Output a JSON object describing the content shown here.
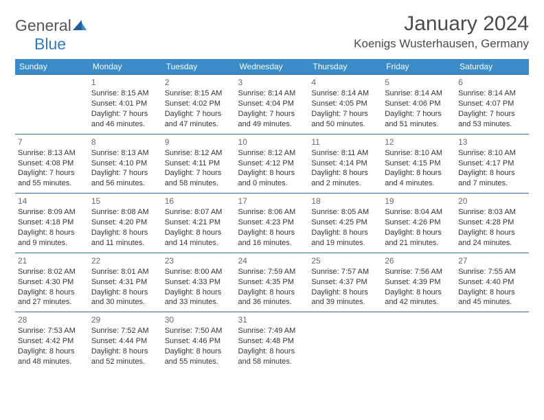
{
  "logo": {
    "word1": "General",
    "word2": "Blue"
  },
  "title": "January 2024",
  "location": "Koenigs Wusterhausen, Germany",
  "colors": {
    "header_bg": "#3b8bc9",
    "border": "#2e6fa8",
    "logo_gray": "#555555",
    "logo_blue": "#2e7cc0",
    "text": "#333333",
    "daynum": "#6a6a6a",
    "page_bg": "#ffffff"
  },
  "weekdays": [
    "Sunday",
    "Monday",
    "Tuesday",
    "Wednesday",
    "Thursday",
    "Friday",
    "Saturday"
  ],
  "weeks": [
    [
      null,
      {
        "day": "1",
        "sunrise": "Sunrise: 8:15 AM",
        "sunset": "Sunset: 4:01 PM",
        "dl1": "Daylight: 7 hours",
        "dl2": "and 46 minutes."
      },
      {
        "day": "2",
        "sunrise": "Sunrise: 8:15 AM",
        "sunset": "Sunset: 4:02 PM",
        "dl1": "Daylight: 7 hours",
        "dl2": "and 47 minutes."
      },
      {
        "day": "3",
        "sunrise": "Sunrise: 8:14 AM",
        "sunset": "Sunset: 4:04 PM",
        "dl1": "Daylight: 7 hours",
        "dl2": "and 49 minutes."
      },
      {
        "day": "4",
        "sunrise": "Sunrise: 8:14 AM",
        "sunset": "Sunset: 4:05 PM",
        "dl1": "Daylight: 7 hours",
        "dl2": "and 50 minutes."
      },
      {
        "day": "5",
        "sunrise": "Sunrise: 8:14 AM",
        "sunset": "Sunset: 4:06 PM",
        "dl1": "Daylight: 7 hours",
        "dl2": "and 51 minutes."
      },
      {
        "day": "6",
        "sunrise": "Sunrise: 8:14 AM",
        "sunset": "Sunset: 4:07 PM",
        "dl1": "Daylight: 7 hours",
        "dl2": "and 53 minutes."
      }
    ],
    [
      {
        "day": "7",
        "sunrise": "Sunrise: 8:13 AM",
        "sunset": "Sunset: 4:08 PM",
        "dl1": "Daylight: 7 hours",
        "dl2": "and 55 minutes."
      },
      {
        "day": "8",
        "sunrise": "Sunrise: 8:13 AM",
        "sunset": "Sunset: 4:10 PM",
        "dl1": "Daylight: 7 hours",
        "dl2": "and 56 minutes."
      },
      {
        "day": "9",
        "sunrise": "Sunrise: 8:12 AM",
        "sunset": "Sunset: 4:11 PM",
        "dl1": "Daylight: 7 hours",
        "dl2": "and 58 minutes."
      },
      {
        "day": "10",
        "sunrise": "Sunrise: 8:12 AM",
        "sunset": "Sunset: 4:12 PM",
        "dl1": "Daylight: 8 hours",
        "dl2": "and 0 minutes."
      },
      {
        "day": "11",
        "sunrise": "Sunrise: 8:11 AM",
        "sunset": "Sunset: 4:14 PM",
        "dl1": "Daylight: 8 hours",
        "dl2": "and 2 minutes."
      },
      {
        "day": "12",
        "sunrise": "Sunrise: 8:10 AM",
        "sunset": "Sunset: 4:15 PM",
        "dl1": "Daylight: 8 hours",
        "dl2": "and 4 minutes."
      },
      {
        "day": "13",
        "sunrise": "Sunrise: 8:10 AM",
        "sunset": "Sunset: 4:17 PM",
        "dl1": "Daylight: 8 hours",
        "dl2": "and 7 minutes."
      }
    ],
    [
      {
        "day": "14",
        "sunrise": "Sunrise: 8:09 AM",
        "sunset": "Sunset: 4:18 PM",
        "dl1": "Daylight: 8 hours",
        "dl2": "and 9 minutes."
      },
      {
        "day": "15",
        "sunrise": "Sunrise: 8:08 AM",
        "sunset": "Sunset: 4:20 PM",
        "dl1": "Daylight: 8 hours",
        "dl2": "and 11 minutes."
      },
      {
        "day": "16",
        "sunrise": "Sunrise: 8:07 AM",
        "sunset": "Sunset: 4:21 PM",
        "dl1": "Daylight: 8 hours",
        "dl2": "and 14 minutes."
      },
      {
        "day": "17",
        "sunrise": "Sunrise: 8:06 AM",
        "sunset": "Sunset: 4:23 PM",
        "dl1": "Daylight: 8 hours",
        "dl2": "and 16 minutes."
      },
      {
        "day": "18",
        "sunrise": "Sunrise: 8:05 AM",
        "sunset": "Sunset: 4:25 PM",
        "dl1": "Daylight: 8 hours",
        "dl2": "and 19 minutes."
      },
      {
        "day": "19",
        "sunrise": "Sunrise: 8:04 AM",
        "sunset": "Sunset: 4:26 PM",
        "dl1": "Daylight: 8 hours",
        "dl2": "and 21 minutes."
      },
      {
        "day": "20",
        "sunrise": "Sunrise: 8:03 AM",
        "sunset": "Sunset: 4:28 PM",
        "dl1": "Daylight: 8 hours",
        "dl2": "and 24 minutes."
      }
    ],
    [
      {
        "day": "21",
        "sunrise": "Sunrise: 8:02 AM",
        "sunset": "Sunset: 4:30 PM",
        "dl1": "Daylight: 8 hours",
        "dl2": "and 27 minutes."
      },
      {
        "day": "22",
        "sunrise": "Sunrise: 8:01 AM",
        "sunset": "Sunset: 4:31 PM",
        "dl1": "Daylight: 8 hours",
        "dl2": "and 30 minutes."
      },
      {
        "day": "23",
        "sunrise": "Sunrise: 8:00 AM",
        "sunset": "Sunset: 4:33 PM",
        "dl1": "Daylight: 8 hours",
        "dl2": "and 33 minutes."
      },
      {
        "day": "24",
        "sunrise": "Sunrise: 7:59 AM",
        "sunset": "Sunset: 4:35 PM",
        "dl1": "Daylight: 8 hours",
        "dl2": "and 36 minutes."
      },
      {
        "day": "25",
        "sunrise": "Sunrise: 7:57 AM",
        "sunset": "Sunset: 4:37 PM",
        "dl1": "Daylight: 8 hours",
        "dl2": "and 39 minutes."
      },
      {
        "day": "26",
        "sunrise": "Sunrise: 7:56 AM",
        "sunset": "Sunset: 4:39 PM",
        "dl1": "Daylight: 8 hours",
        "dl2": "and 42 minutes."
      },
      {
        "day": "27",
        "sunrise": "Sunrise: 7:55 AM",
        "sunset": "Sunset: 4:40 PM",
        "dl1": "Daylight: 8 hours",
        "dl2": "and 45 minutes."
      }
    ],
    [
      {
        "day": "28",
        "sunrise": "Sunrise: 7:53 AM",
        "sunset": "Sunset: 4:42 PM",
        "dl1": "Daylight: 8 hours",
        "dl2": "and 48 minutes."
      },
      {
        "day": "29",
        "sunrise": "Sunrise: 7:52 AM",
        "sunset": "Sunset: 4:44 PM",
        "dl1": "Daylight: 8 hours",
        "dl2": "and 52 minutes."
      },
      {
        "day": "30",
        "sunrise": "Sunrise: 7:50 AM",
        "sunset": "Sunset: 4:46 PM",
        "dl1": "Daylight: 8 hours",
        "dl2": "and 55 minutes."
      },
      {
        "day": "31",
        "sunrise": "Sunrise: 7:49 AM",
        "sunset": "Sunset: 4:48 PM",
        "dl1": "Daylight: 8 hours",
        "dl2": "and 58 minutes."
      },
      null,
      null,
      null
    ]
  ]
}
